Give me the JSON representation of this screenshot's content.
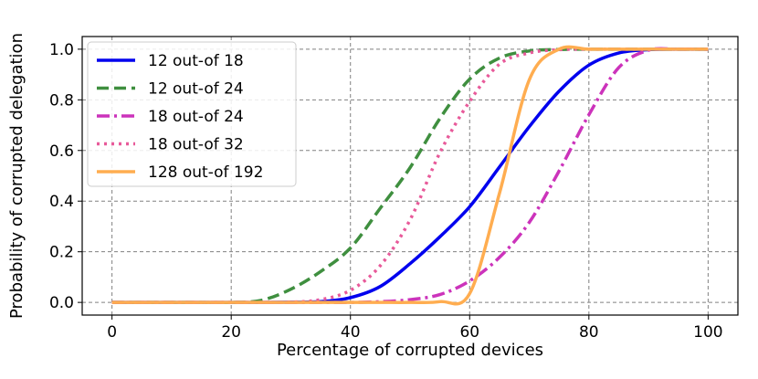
{
  "chart_data": {
    "type": "line",
    "title": "",
    "xlabel": "Percentage of corrupted devices",
    "ylabel": "Probability of corrupted delegation",
    "xlim": [
      -5,
      105
    ],
    "ylim": [
      -0.05,
      1.05
    ],
    "xticks": [
      0,
      20,
      40,
      60,
      80,
      100
    ],
    "xtick_labels": [
      "0",
      "20",
      "40",
      "60",
      "80",
      "100"
    ],
    "yticks": [
      0.0,
      0.2,
      0.4,
      0.6,
      0.8,
      1.0
    ],
    "ytick_labels": [
      "0.0",
      "0.2",
      "0.4",
      "0.6",
      "0.8",
      "1.0"
    ],
    "grid": true,
    "legend_position": "top-left",
    "x": [
      0,
      5,
      10,
      15,
      20,
      25,
      30,
      35,
      40,
      45,
      50,
      55,
      60,
      65,
      70,
      75,
      80,
      85,
      90,
      95,
      100
    ],
    "series": [
      {
        "name": "12 out-of 18",
        "color": "#0000ee",
        "dash": "solid",
        "values": [
          0.0,
          0.0,
          0.0,
          0.0,
          0.0,
          0.0,
          0.001,
          0.003,
          0.019,
          0.063,
          0.153,
          0.259,
          0.378,
          0.535,
          0.694,
          0.834,
          0.937,
          0.985,
          0.998,
          1.0,
          1.0
        ]
      },
      {
        "name": "12 out-of 24",
        "color": "#3f8f3f",
        "dash": "dashed",
        "values": [
          0.0,
          0.0,
          0.0,
          0.0,
          0.0,
          0.008,
          0.052,
          0.122,
          0.215,
          0.372,
          0.532,
          0.726,
          0.882,
          0.965,
          0.993,
          0.999,
          1.0,
          1.0,
          1.0,
          1.0,
          1.0
        ]
      },
      {
        "name": "18 out-of 24",
        "color": "#cc33bb",
        "dash": "dashdot",
        "values": [
          0.0,
          0.0,
          0.0,
          0.0,
          0.0,
          0.0,
          0.0,
          0.0,
          0.0,
          0.003,
          0.011,
          0.031,
          0.085,
          0.178,
          0.316,
          0.519,
          0.741,
          0.927,
          0.996,
          1.0,
          1.0
        ]
      },
      {
        "name": "18 out-of 32",
        "color": "#e85a9a",
        "dash": "dotted",
        "values": [
          0.0,
          0.0,
          0.0,
          0.0,
          0.0,
          0.0,
          0.001,
          0.011,
          0.048,
          0.145,
          0.326,
          0.591,
          0.794,
          0.941,
          0.985,
          0.998,
          1.0,
          1.0,
          1.0,
          1.0,
          1.0
        ]
      },
      {
        "name": "128 out-of 192",
        "color": "#ffad50",
        "dash": "solid",
        "values": [
          0.0,
          0.0,
          0.0,
          0.0,
          0.0,
          0.0,
          0.0,
          0.0,
          0.0,
          0.0,
          0.0,
          0.003,
          0.035,
          0.431,
          0.879,
          1.0,
          1.0,
          1.0,
          1.0,
          1.0,
          1.0
        ]
      }
    ]
  }
}
